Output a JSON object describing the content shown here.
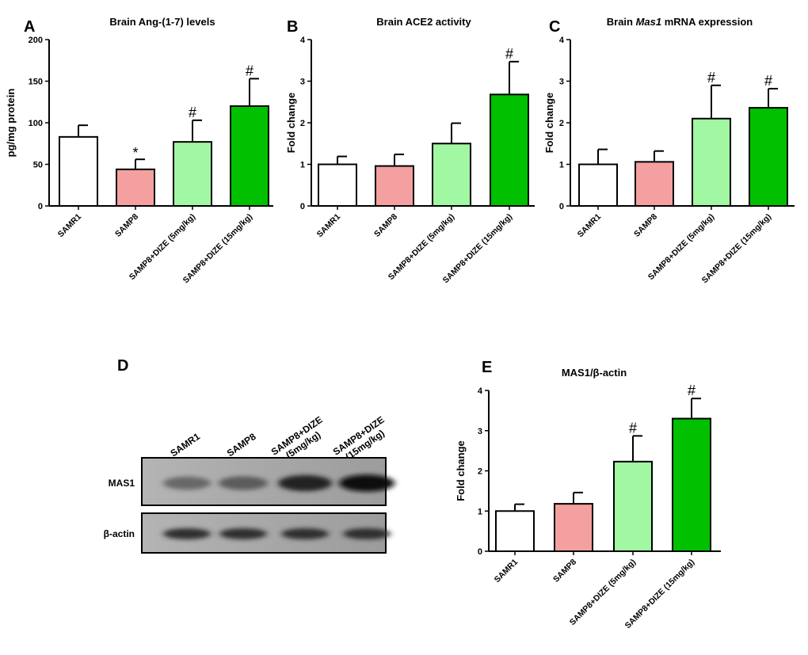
{
  "chart_data": [
    {
      "panel": "A",
      "type": "bar",
      "title": "Brain Ang-(1-7) levels",
      "ylabel": "pg/mg protein",
      "ylim": [
        0,
        200
      ],
      "yticks": [
        "0",
        "50",
        "100",
        "150",
        "200"
      ],
      "categories": [
        "SAMR1",
        "SAMP8",
        "SAMP8+DIZE (5mg/kg)",
        "SAMP8+DIZE (15mg/kg)"
      ],
      "values": [
        83,
        44,
        77,
        120
      ],
      "errors": [
        14,
        12,
        26,
        33
      ],
      "annotations": [
        "",
        "*",
        "#",
        "#"
      ],
      "colors": [
        "#ffffff",
        "#f4a0a0",
        "#a2f7a2",
        "#00c000"
      ]
    },
    {
      "panel": "B",
      "type": "bar",
      "title": "Brain ACE2 activity",
      "ylabel": "Fold change",
      "ylim": [
        0,
        4
      ],
      "yticks": [
        "0",
        "1",
        "2",
        "3",
        "4"
      ],
      "categories": [
        "SAMR1",
        "SAMP8",
        "SAMP8+DIZE (5mg/kg)",
        "SAMP8+DIZE (15mg/kg)"
      ],
      "values": [
        1.0,
        0.96,
        1.5,
        2.68
      ],
      "errors": [
        0.19,
        0.28,
        0.49,
        0.79
      ],
      "annotations": [
        "",
        "",
        "",
        "#"
      ],
      "colors": [
        "#ffffff",
        "#f4a0a0",
        "#a2f7a2",
        "#00c000"
      ]
    },
    {
      "panel": "C",
      "type": "bar",
      "title_parts": [
        "Brain ",
        "Mas1",
        " mRNA expression"
      ],
      "ylabel": "Fold change",
      "ylim": [
        0,
        4
      ],
      "yticks": [
        "0",
        "1",
        "2",
        "3",
        "4"
      ],
      "categories": [
        "SAMR1",
        "SAMP8",
        "SAMP8+DIZE (5mg/kg)",
        "SAMP8+DIZE (15mg/kg)"
      ],
      "values": [
        1.0,
        1.06,
        2.1,
        2.36
      ],
      "errors": [
        0.36,
        0.26,
        0.8,
        0.46
      ],
      "annotations": [
        "",
        "",
        "#",
        "#"
      ],
      "colors": [
        "#ffffff",
        "#f4a0a0",
        "#a2f7a2",
        "#00c000"
      ]
    },
    {
      "panel": "E",
      "type": "bar",
      "title": "MAS1/β-actin",
      "ylabel": "Fold change",
      "ylim": [
        0,
        4
      ],
      "yticks": [
        "0",
        "1",
        "2",
        "3",
        "4"
      ],
      "categories": [
        "SAMR1",
        "SAMP8",
        "SAMP8+DIZE (5mg/kg)",
        "SAMP8+DIZE (15mg/kg)"
      ],
      "values": [
        1.0,
        1.18,
        2.23,
        3.3
      ],
      "errors": [
        0.17,
        0.28,
        0.64,
        0.5
      ],
      "annotations": [
        "",
        "",
        "#",
        "#"
      ],
      "colors": [
        "#ffffff",
        "#f4a0a0",
        "#a2f7a2",
        "#00c000"
      ]
    }
  ],
  "blot": {
    "panel": "D",
    "lanes": [
      [
        "SAMR1"
      ],
      [
        "SAMP8"
      ],
      [
        "SAMP8+DIZE",
        "(5mg/kg)"
      ],
      [
        "SAMP8+DIZE",
        "(15mg/kg)"
      ]
    ],
    "rows": [
      "MAS1",
      "β-actin"
    ],
    "mas1_intensity": [
      0.55,
      0.6,
      0.85,
      0.95
    ],
    "actin_intensity": [
      0.8,
      0.8,
      0.8,
      0.8
    ]
  }
}
